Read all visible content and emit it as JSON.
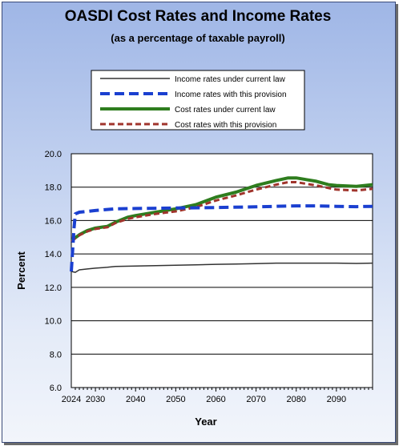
{
  "chart_data": {
    "type": "line",
    "title": "OASDI Cost Rates and Income Rates",
    "subtitle": "(as a percentage of taxable payroll)",
    "xlabel": "Year",
    "ylabel": "Percent",
    "ylim": [
      6.0,
      20.0
    ],
    "xlim": [
      2024,
      2099
    ],
    "yticks": [
      "20.0",
      "18.0",
      "16.0",
      "14.0",
      "12.0",
      "10.0",
      "8.0",
      "6.0"
    ],
    "xticks": [
      "2024",
      "2030",
      "2040",
      "2050",
      "2060",
      "2070",
      "2080",
      "2090"
    ],
    "grid": true,
    "legend_position": "top",
    "series": [
      {
        "name": "Income rates under current law",
        "color": "#333333",
        "style": "solid",
        "x": [
          2024,
          2025,
          2026,
          2028,
          2030,
          2033,
          2035,
          2040,
          2045,
          2050,
          2055,
          2060,
          2065,
          2070,
          2075,
          2080,
          2085,
          2090,
          2095,
          2099
        ],
        "y": [
          12.95,
          12.9,
          13.05,
          13.1,
          13.15,
          13.2,
          13.25,
          13.28,
          13.3,
          13.32,
          13.35,
          13.38,
          13.4,
          13.42,
          13.45,
          13.45,
          13.45,
          13.45,
          13.43,
          13.45
        ]
      },
      {
        "name": "Income rates with this provision",
        "color": "#1a3fd0",
        "style": "dashed",
        "x": [
          2024,
          2024.7,
          2025,
          2026,
          2030,
          2035,
          2040,
          2050,
          2060,
          2070,
          2075,
          2080,
          2085,
          2090,
          2095,
          2099
        ],
        "y": [
          12.95,
          15.6,
          16.4,
          16.5,
          16.6,
          16.7,
          16.72,
          16.75,
          16.78,
          16.82,
          16.85,
          16.88,
          16.88,
          16.85,
          16.83,
          16.85
        ]
      },
      {
        "name": "Cost rates under current law",
        "color": "#2e7d1e",
        "style": "solid",
        "x": [
          2024,
          2026,
          2028,
          2030,
          2033,
          2035,
          2038,
          2040,
          2045,
          2050,
          2055,
          2060,
          2065,
          2070,
          2075,
          2078,
          2080,
          2085,
          2088,
          2090,
          2095,
          2099
        ],
        "y": [
          14.8,
          15.15,
          15.4,
          15.55,
          15.65,
          15.9,
          16.2,
          16.3,
          16.5,
          16.7,
          16.95,
          17.4,
          17.7,
          18.1,
          18.4,
          18.55,
          18.55,
          18.35,
          18.15,
          18.1,
          18.05,
          18.15
        ]
      },
      {
        "name": "Cost rates with this provision",
        "color": "#a0342c",
        "style": "dashed",
        "x": [
          2024,
          2026,
          2028,
          2030,
          2033,
          2035,
          2038,
          2040,
          2045,
          2050,
          2055,
          2060,
          2065,
          2070,
          2075,
          2078,
          2080,
          2085,
          2088,
          2090,
          2095,
          2099
        ],
        "y": [
          14.75,
          15.12,
          15.35,
          15.5,
          15.6,
          15.85,
          16.1,
          16.2,
          16.4,
          16.55,
          16.8,
          17.2,
          17.5,
          17.85,
          18.15,
          18.3,
          18.3,
          18.1,
          17.95,
          17.85,
          17.8,
          17.9
        ]
      }
    ]
  }
}
